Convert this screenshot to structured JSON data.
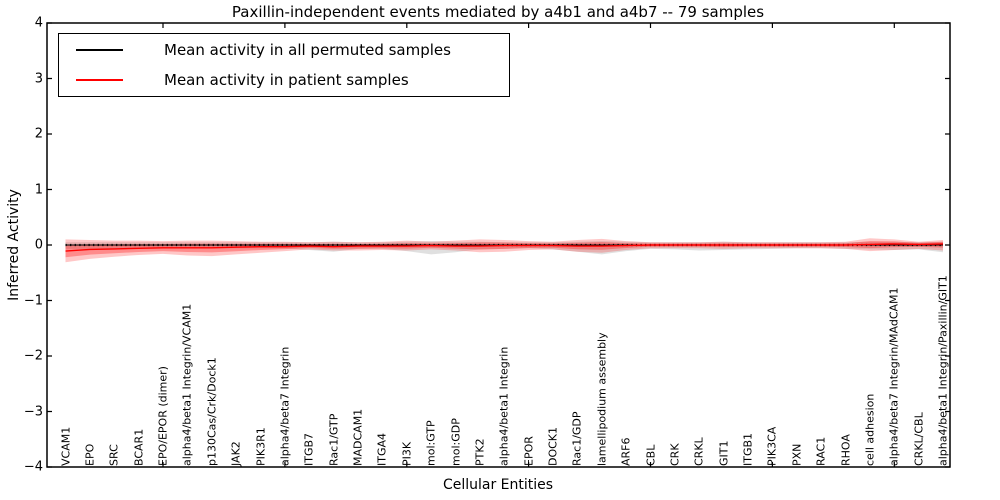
{
  "figure": {
    "title": "Paxillin-independent events mediated by a4b1 and a4b7 -- 79 samples",
    "xlabel": "Cellular Entities",
    "ylabel": "Inferred Activity"
  },
  "legend": {
    "entries": [
      {
        "label": "Mean activity in all permuted samples",
        "color": "#000000"
      },
      {
        "label": "Mean activity in patient samples",
        "color": "#ff0000"
      }
    ]
  },
  "chart_data": {
    "type": "line",
    "title": "Paxillin-independent events mediated by a4b1 and a4b7 -- 79 samples",
    "xlabel": "Cellular Entities",
    "ylabel": "Inferred Activity",
    "ylim": [
      -4,
      4
    ],
    "yticks": [
      -4,
      -3,
      -2,
      -1,
      0,
      1,
      2,
      3,
      4
    ],
    "xtick_positions": [
      5,
      10,
      15,
      20,
      25,
      30,
      35
    ],
    "grid": false,
    "legend_position": "upper left",
    "categories": [
      "VCAM1",
      "EPO",
      "SRC",
      "BCAR1",
      "EPO/EPOR (dimer)",
      "alpha4/beta1 Integrin/VCAM1",
      "p130Cas/Crk/Dock1",
      "JAK2",
      "PIK3R1",
      "alpha4/beta7 Integrin",
      "ITGB7",
      "Rac1/GTP",
      "MADCAM1",
      "ITGA4",
      "PI3K",
      "mol:GTP",
      "mol:GDP",
      "PTK2",
      "alpha4/beta1 Integrin",
      "EPOR",
      "DOCK1",
      "Rac1/GDP",
      "lamellipodium assembly",
      "ARF6",
      "CBL",
      "CRK",
      "CRKL",
      "GIT1",
      "ITGB1",
      "PIK3CA",
      "PXN",
      "RAC1",
      "RHOA",
      "cell adhesion",
      "alpha4/beta7 Integrin/MAdCAM1",
      "CRKL/CBL",
      "alpha4/beta1 Integrin/Paxillin/GIT1"
    ],
    "series": [
      {
        "name": "Mean activity in all permuted samples",
        "color": "#000000",
        "style": "dotted",
        "values": [
          0,
          0,
          0,
          0,
          0,
          0,
          0,
          0,
          0,
          0,
          0,
          0,
          0,
          0,
          0,
          0,
          0,
          0,
          0,
          0,
          0,
          0,
          0,
          0,
          0,
          0,
          0,
          0,
          0,
          0,
          0,
          0,
          0,
          0,
          0,
          0,
          0
        ]
      },
      {
        "name": "Mean activity in patient samples",
        "color": "#ff0000",
        "style": "solid",
        "values": [
          -0.11,
          -0.08,
          -0.07,
          -0.06,
          -0.05,
          -0.05,
          -0.05,
          -0.04,
          -0.03,
          -0.03,
          -0.02,
          -0.03,
          -0.02,
          -0.02,
          -0.02,
          -0.01,
          -0.02,
          -0.02,
          -0.01,
          -0.01,
          -0.01,
          -0.02,
          -0.02,
          -0.01,
          0,
          0,
          0,
          0,
          0,
          0,
          0,
          0,
          0,
          0.01,
          0.02,
          0.01,
          0.02
        ]
      }
    ],
    "bands": [
      {
        "name": "permuted-std",
        "color": "#999999",
        "opacity": 0.3,
        "upper": [
          0.05,
          0.05,
          0.05,
          0.05,
          0.05,
          0.05,
          0.05,
          0.05,
          0.05,
          0.05,
          0.05,
          0.06,
          0.05,
          0.05,
          0.06,
          0.07,
          0.06,
          0.06,
          0.05,
          0.05,
          0.05,
          0.06,
          0.07,
          0.06,
          0.05,
          0.05,
          0.05,
          0.06,
          0.05,
          0.05,
          0.05,
          0.05,
          0.05,
          0.06,
          0.06,
          0.05,
          0.06
        ],
        "lower": [
          -0.07,
          -0.07,
          -0.06,
          -0.06,
          -0.06,
          -0.06,
          -0.06,
          -0.06,
          -0.06,
          -0.06,
          -0.09,
          -0.12,
          -0.07,
          -0.07,
          -0.11,
          -0.17,
          -0.13,
          -0.08,
          -0.07,
          -0.06,
          -0.08,
          -0.12,
          -0.17,
          -0.11,
          -0.07,
          -0.08,
          -0.1,
          -0.09,
          -0.08,
          -0.07,
          -0.06,
          -0.06,
          -0.07,
          -0.08,
          -0.09,
          -0.08,
          -0.13
        ]
      },
      {
        "name": "patient-std",
        "color": "#ff0000",
        "opacity": 0.25,
        "upper": [
          0.1,
          0.09,
          0.08,
          0.08,
          0.07,
          0.08,
          0.08,
          0.07,
          0.06,
          0.06,
          0.05,
          0.06,
          0.05,
          0.06,
          0.08,
          0.06,
          0.08,
          0.1,
          0.09,
          0.07,
          0.06,
          0.09,
          0.11,
          0.07,
          0.05,
          0.05,
          0.05,
          0.06,
          0.05,
          0.05,
          0.05,
          0.05,
          0.06,
          0.12,
          0.1,
          0.06,
          0.09
        ],
        "lower": [
          -0.31,
          -0.25,
          -0.21,
          -0.18,
          -0.16,
          -0.19,
          -0.2,
          -0.17,
          -0.14,
          -0.11,
          -0.08,
          -0.1,
          -0.1,
          -0.09,
          -0.1,
          -0.08,
          -0.1,
          -0.13,
          -0.12,
          -0.09,
          -0.08,
          -0.12,
          -0.14,
          -0.09,
          -0.06,
          -0.06,
          -0.06,
          -0.07,
          -0.06,
          -0.06,
          -0.06,
          -0.06,
          -0.07,
          -0.11,
          -0.09,
          -0.07,
          -0.1
        ]
      }
    ]
  }
}
